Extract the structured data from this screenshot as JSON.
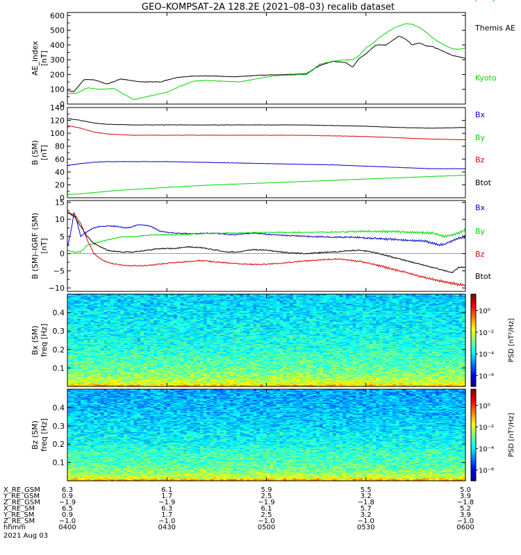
{
  "title": "GEO–KOMPSAT–2A 128.2E (2021–08–03) recalib dataset",
  "chart_data": [
    {
      "type": "line",
      "ylabel": [
        "AE_index",
        "[nT]"
      ],
      "ylim": [
        0,
        620
      ],
      "yticks": [
        "0",
        "100",
        "200",
        "300",
        "400",
        "500",
        "600"
      ],
      "x_domain": [
        0,
        120
      ],
      "series": [
        {
          "name": "Themis AE",
          "legend_lines": [
            "Themis AE"
          ],
          "color": "#000000",
          "x": [
            0,
            2,
            5,
            8,
            12,
            16,
            22,
            28,
            33,
            38,
            44,
            50,
            58,
            66,
            72,
            76,
            80,
            84,
            86,
            88,
            90,
            93,
            96,
            98,
            100,
            102,
            104,
            106,
            108,
            110,
            112,
            114,
            116,
            118,
            120
          ],
          "values": [
            90,
            85,
            165,
            165,
            135,
            170,
            150,
            150,
            180,
            190,
            190,
            185,
            195,
            200,
            205,
            260,
            290,
            280,
            250,
            310,
            340,
            400,
            400,
            430,
            460,
            440,
            400,
            415,
            395,
            390,
            370,
            350,
            330,
            320,
            310
          ]
        },
        {
          "name": "Kyoto proxy AE",
          "legend_lines": [
            "Kyoto",
            "proxy AE"
          ],
          "color": "#00d800",
          "x": [
            0,
            3,
            6,
            10,
            14,
            18,
            20,
            22,
            26,
            30,
            34,
            38,
            42,
            46,
            52,
            58,
            62,
            66,
            70,
            72,
            74,
            76,
            80,
            84,
            86,
            88,
            90,
            92,
            94,
            96,
            98,
            100,
            102,
            104,
            106,
            108,
            110,
            112,
            114,
            116,
            118,
            120
          ],
          "values": [
            70,
            75,
            110,
            100,
            105,
            55,
            30,
            40,
            60,
            80,
            120,
            155,
            160,
            155,
            150,
            175,
            190,
            195,
            200,
            200,
            230,
            270,
            290,
            300,
            300,
            330,
            380,
            410,
            450,
            480,
            510,
            530,
            545,
            540,
            520,
            490,
            450,
            420,
            395,
            375,
            370,
            380
          ]
        }
      ]
    },
    {
      "type": "line",
      "ylabel": [
        "B (SM)",
        "[nT]"
      ],
      "ylim": [
        0,
        140
      ],
      "yticks": [
        "0",
        "20",
        "40",
        "60",
        "80",
        "100",
        "120",
        "140"
      ],
      "x_domain": [
        0,
        120
      ],
      "series": [
        {
          "name": "Bx",
          "legend_lines": [
            "Bx"
          ],
          "color": "#0000cc",
          "x": [
            0,
            4,
            8,
            12,
            20,
            30,
            40,
            50,
            60,
            70,
            80,
            90,
            100,
            110,
            120
          ],
          "values": [
            50,
            53,
            55,
            56,
            56,
            56,
            55,
            54,
            53,
            52,
            51,
            49,
            47,
            45,
            45
          ]
        },
        {
          "name": "By",
          "legend_lines": [
            "By"
          ],
          "color": "#00d800",
          "x": [
            0,
            4,
            8,
            12,
            20,
            30,
            40,
            50,
            60,
            70,
            80,
            90,
            100,
            110,
            120
          ],
          "values": [
            5,
            6,
            8,
            10,
            13,
            16,
            19,
            21,
            23,
            25,
            27,
            29,
            31,
            33,
            35
          ]
        },
        {
          "name": "Bz",
          "legend_lines": [
            "Bz"
          ],
          "color": "#dd0000",
          "x": [
            0,
            4,
            8,
            12,
            20,
            30,
            40,
            50,
            60,
            70,
            80,
            90,
            100,
            110,
            120
          ],
          "values": [
            112,
            108,
            102,
            99,
            97,
            97,
            97,
            97,
            97,
            97,
            96,
            95,
            93,
            91,
            90
          ]
        },
        {
          "name": "Btot",
          "legend_lines": [
            "Btot"
          ],
          "color": "#000000",
          "x": [
            0,
            4,
            8,
            12,
            20,
            30,
            40,
            50,
            60,
            70,
            80,
            90,
            100,
            110,
            120
          ],
          "values": [
            123,
            120,
            116,
            114,
            113,
            113,
            113,
            113,
            113,
            113,
            112,
            111,
            109,
            108,
            109
          ]
        }
      ]
    },
    {
      "type": "line",
      "ylabel": [
        "B (SM)–IGRF (SM)",
        "[nT]"
      ],
      "ylim": [
        -11,
        15.5
      ],
      "yticks_values": [
        -10,
        -5,
        0,
        5,
        10,
        15
      ],
      "yticks": [
        "−10",
        "−5",
        "0",
        "5",
        "10",
        "15"
      ],
      "x_domain": [
        0,
        120
      ],
      "series": [
        {
          "name": "Bx",
          "legend_lines": [
            "Bx"
          ],
          "color": "#0000cc",
          "x": [
            0,
            1,
            2,
            3,
            4,
            6,
            8,
            10,
            14,
            18,
            22,
            25,
            28,
            32,
            38,
            44,
            50,
            56,
            62,
            68,
            74,
            80,
            86,
            92,
            98,
            104,
            108,
            112,
            114,
            116,
            118,
            120
          ],
          "values": [
            2,
            6,
            12,
            9,
            5,
            6.5,
            7.5,
            8,
            8,
            7.5,
            8.5,
            8,
            6.5,
            6,
            5.8,
            6,
            5.5,
            6,
            5.5,
            5.2,
            5,
            4.8,
            4.8,
            4.5,
            4.2,
            3.8,
            3.6,
            2.5,
            2.8,
            3.8,
            4.5,
            5
          ]
        },
        {
          "name": "By",
          "legend_lines": [
            "By"
          ],
          "color": "#00d800",
          "x": [
            0,
            2,
            4,
            6,
            8,
            10,
            12,
            16,
            20,
            26,
            32,
            40,
            50,
            60,
            70,
            80,
            90,
            100,
            106,
            110,
            114,
            118,
            120
          ],
          "values": [
            1,
            0.5,
            0.5,
            2.5,
            3,
            3.5,
            4,
            4.8,
            5,
            5.5,
            5.5,
            5.8,
            6,
            6.2,
            6.2,
            6.3,
            6.5,
            6.4,
            6.2,
            6,
            5,
            6,
            7
          ]
        },
        {
          "name": "Bz",
          "legend_lines": [
            "Bz"
          ],
          "color": "#dd0000",
          "x": [
            0,
            2,
            4,
            6,
            8,
            10,
            12,
            14,
            17,
            20,
            24,
            28,
            34,
            40,
            46,
            52,
            58,
            64,
            70,
            76,
            82,
            88,
            94,
            100,
            106,
            110,
            114,
            118,
            120
          ],
          "values": [
            12,
            11.5,
            9,
            4,
            0,
            -1.5,
            -2.5,
            -3,
            -3.5,
            -3.5,
            -3.5,
            -3,
            -2.5,
            -2,
            -2.5,
            -3,
            -3.2,
            -2.8,
            -2.3,
            -1.8,
            -1.6,
            -2.2,
            -3.5,
            -5,
            -6.5,
            -7.5,
            -8.3,
            -9,
            -9.3
          ]
        },
        {
          "name": "Btot",
          "legend_lines": [
            "Btot"
          ],
          "color": "#000000",
          "x": [
            0,
            2,
            4,
            6,
            8,
            10,
            12,
            16,
            20,
            24,
            28,
            32,
            36,
            40,
            44,
            48,
            52,
            56,
            60,
            64,
            68,
            72,
            76,
            80,
            84,
            88,
            92,
            96,
            100,
            104,
            108,
            112,
            116,
            118,
            120
          ],
          "values": [
            12,
            11,
            8,
            5,
            3,
            2,
            1,
            0.5,
            0.5,
            1,
            1.5,
            1.5,
            2,
            1.8,
            1.2,
            0.5,
            0.5,
            1.2,
            1,
            0.5,
            0.2,
            0,
            0.3,
            0.5,
            0.8,
            1,
            0.5,
            -0.5,
            -1.5,
            -2.5,
            -3.5,
            -4.5,
            -5.5,
            -4,
            -4
          ]
        }
      ]
    },
    {
      "type": "heatmap",
      "ylabel": [
        "Bx (SM)",
        "freq [Hz]"
      ],
      "ylim": [
        0,
        0.5
      ],
      "yticks_values": [
        0.1,
        0.2,
        0.3,
        0.4
      ],
      "yticks": [
        "0.1",
        "0.2",
        "0.3",
        "0.4"
      ],
      "colorbar_label": "PSD [nT²/Hz]",
      "colorbar_ticks": [
        "10⁰",
        "10⁻²",
        "10⁻⁴",
        "10⁻⁶"
      ],
      "colorbar_log_range": [
        -7,
        1.5
      ],
      "colorbar_tick_values": [
        0,
        -2,
        -4,
        -6
      ],
      "psd_profile_log10": {
        "freq": [
          0.0,
          0.01,
          0.02,
          0.05,
          0.1,
          0.15,
          0.2,
          0.3,
          0.4,
          0.5
        ],
        "log10_psd": [
          -0.5,
          -1.5,
          -2.0,
          -2.5,
          -3.0,
          -3.2,
          -3.5,
          -3.8,
          -4.0,
          -4.2
        ]
      }
    },
    {
      "type": "heatmap",
      "ylabel": [
        "Bz (SM)",
        "freq [Hz]"
      ],
      "ylim": [
        0,
        0.5
      ],
      "yticks_values": [
        0.1,
        0.2,
        0.3,
        0.4
      ],
      "yticks": [
        "0.1",
        "0.2",
        "0.3",
        "0.4"
      ],
      "colorbar_label": "PSD [nT²/Hz]",
      "colorbar_ticks": [
        "10⁰",
        "10⁻²",
        "10⁻⁴",
        "10⁻⁶"
      ],
      "colorbar_log_range": [
        -7,
        1.5
      ],
      "colorbar_tick_values": [
        0,
        -2,
        -4,
        -6
      ],
      "psd_profile_log10": {
        "freq": [
          0.0,
          0.01,
          0.02,
          0.05,
          0.1,
          0.15,
          0.2,
          0.3,
          0.4,
          0.5
        ],
        "log10_psd": [
          -0.3,
          -1.3,
          -2.0,
          -2.7,
          -3.2,
          -3.3,
          -3.7,
          -4.1,
          -4.4,
          -4.6
        ]
      }
    }
  ],
  "xaxis": {
    "row_labels": [
      "X_RE_GSM",
      "Y_RE_GSM",
      "Z_RE_GSM",
      "X_RE_SM",
      "Y_RE_SM",
      "Z_RE_SM",
      "hhmm",
      "2021 Aug 03"
    ],
    "columns": [
      {
        "x": 0,
        "values": [
          "6.3",
          "0.9",
          "−1.9",
          "6.5",
          "0.9",
          "−1.0",
          "0400"
        ]
      },
      {
        "x": 30,
        "values": [
          "6.1",
          "1.7",
          "−1.9",
          "6.3",
          "1.7",
          "−1.0",
          "0430"
        ]
      },
      {
        "x": 60,
        "values": [
          "5.9",
          "2.5",
          "−1.9",
          "6.1",
          "2.5",
          "−1.0",
          "0500"
        ]
      },
      {
        "x": 90,
        "values": [
          "5.5",
          "3.2",
          "−1.8",
          "5.7",
          "3.2",
          "−1.0",
          "0530"
        ]
      },
      {
        "x": 120,
        "values": [
          "5.0",
          "3.9",
          "−1.8",
          "5.2",
          "3.9",
          "−1.0",
          "0600"
        ]
      }
    ]
  }
}
